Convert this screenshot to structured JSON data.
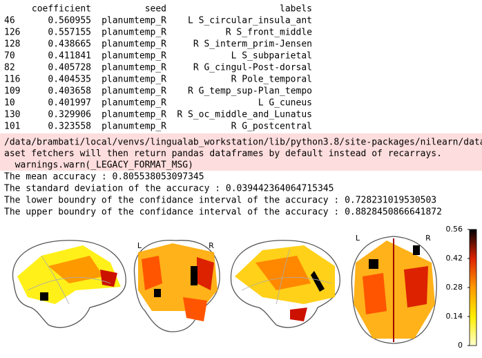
{
  "table": {
    "header": [
      "coefficient",
      "seed",
      "labels"
    ],
    "rows": [
      [
        46,
        0.560955,
        "planumtemp_R",
        "L S_circular_insula_ant"
      ],
      [
        126,
        0.557155,
        "planumtemp_R",
        "R S_front_middle"
      ],
      [
        128,
        0.438665,
        "planumtemp_R",
        "R S_interm_prim-Jensen"
      ],
      [
        70,
        0.411841,
        "planumtemp_R",
        "L S_subparietal"
      ],
      [
        82,
        0.405728,
        "planumtemp_R",
        "R G_cingul-Post-dorsal"
      ],
      [
        116,
        0.404535,
        "planumtemp_R",
        "R Pole_temporal"
      ],
      [
        109,
        0.403658,
        "planumtemp_R",
        "R G_temp_sup-Plan_tempo"
      ],
      [
        10,
        0.401997,
        "planumtemp_R",
        "L G_cuneus"
      ],
      [
        130,
        0.329906,
        "planumtemp_R",
        "R S_oc_middle_and_Lunatus"
      ],
      [
        101,
        0.323558,
        "planumtemp_R",
        "R G_postcentral"
      ]
    ]
  },
  "warning": [
    "/data/brambati/local/venvs/lingualab_workstation/lib/python3.8/site-packages/nilearn/datasets/",
    "aset fetchers will then return pandas dataframes by default instead of recarrays.",
    "  warnings.warn(_LEGACY_FORMAT_MSG)"
  ],
  "output": [
    "The mean accuracy : 0.805538053097345",
    "The standard deviation of the accuracy : 0.039442364064715345",
    "The lower boundry of the confidance interval of the accuracy : 0.728231019530503",
    "The upper boundry of the confidance interval of the accuracy : 0.8828450866641872"
  ],
  "brain": {
    "labels": [
      "L",
      "R",
      "L",
      "R"
    ],
    "colorbar_ticks": [
      0,
      0.14,
      0.28,
      0.42,
      0.56
    ]
  }
}
